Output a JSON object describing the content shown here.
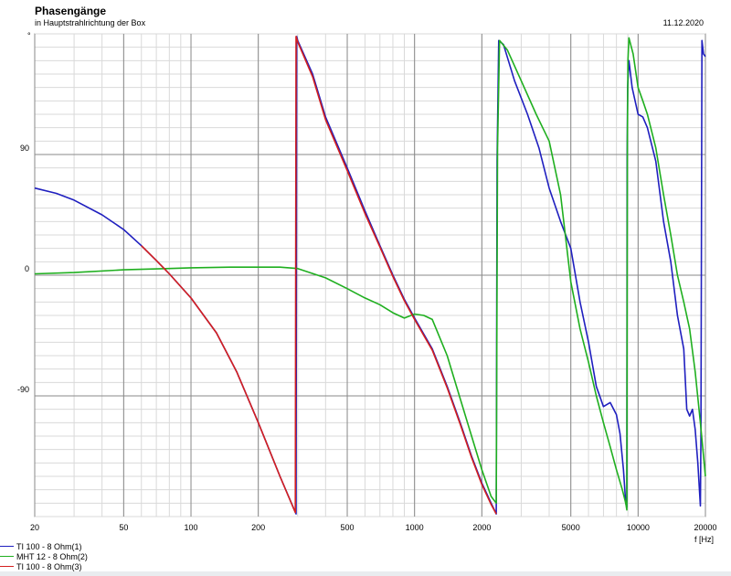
{
  "chart_data": {
    "type": "line",
    "title": "Phasengänge",
    "subtitle": "in Hauptstrahlrichtung der Box",
    "date": "11.12.2020",
    "xlabel": "f [Hz]",
    "ylabel": "°",
    "xscale": "log",
    "xlim": [
      20,
      20000
    ],
    "ylim": [
      -180,
      180
    ],
    "grid": true,
    "legend_position": "bottom-left",
    "x_ticks": [
      {
        "value": 20,
        "label": "20"
      },
      {
        "value": 50,
        "label": "50"
      },
      {
        "value": 100,
        "label": "100"
      },
      {
        "value": 200,
        "label": "200"
      },
      {
        "value": 500,
        "label": "500"
      },
      {
        "value": 1000,
        "label": "1000"
      },
      {
        "value": 2000,
        "label": "2000"
      },
      {
        "value": 5000,
        "label": "5000"
      },
      {
        "value": 10000,
        "label": "10000"
      },
      {
        "value": 20000,
        "label": "20000"
      }
    ],
    "y_ticks": [
      {
        "value": 90,
        "label": "90"
      },
      {
        "value": 0,
        "label": "0"
      },
      {
        "value": -90,
        "label": "-90"
      }
    ],
    "series": [
      {
        "name": "TI 100 - 8 Ohm(1)",
        "color": "#1f1fbf",
        "points": [
          [
            20,
            65
          ],
          [
            25,
            61
          ],
          [
            30,
            56
          ],
          [
            40,
            45
          ],
          [
            50,
            34
          ],
          [
            60,
            22
          ],
          [
            70,
            11
          ],
          [
            80,
            1
          ],
          [
            100,
            -17
          ],
          [
            130,
            -43
          ],
          [
            160,
            -72
          ],
          [
            200,
            -110
          ],
          [
            250,
            -150
          ],
          [
            295,
            -178
          ],
          [
            297,
            178
          ],
          [
            300,
            175
          ],
          [
            350,
            150
          ],
          [
            400,
            118
          ],
          [
            500,
            80
          ],
          [
            600,
            48
          ],
          [
            700,
            22
          ],
          [
            800,
            0
          ],
          [
            900,
            -18
          ],
          [
            1000,
            -32
          ],
          [
            1200,
            -55
          ],
          [
            1400,
            -83
          ],
          [
            1600,
            -110
          ],
          [
            1800,
            -135
          ],
          [
            2000,
            -155
          ],
          [
            2200,
            -170
          ],
          [
            2320,
            -178
          ],
          [
            2340,
            85
          ],
          [
            2380,
            175
          ],
          [
            2500,
            172
          ],
          [
            2800,
            145
          ],
          [
            3200,
            120
          ],
          [
            3600,
            95
          ],
          [
            4000,
            65
          ],
          [
            4500,
            40
          ],
          [
            5000,
            20
          ],
          [
            5500,
            -20
          ],
          [
            6000,
            -50
          ],
          [
            6500,
            -83
          ],
          [
            7000,
            -98
          ],
          [
            7500,
            -95
          ],
          [
            8000,
            -104
          ],
          [
            8300,
            -118
          ],
          [
            8600,
            -145
          ],
          [
            8800,
            -170
          ],
          [
            8900,
            -173
          ],
          [
            8930,
            85
          ],
          [
            8980,
            140
          ],
          [
            9100,
            160
          ],
          [
            9400,
            140
          ],
          [
            10000,
            120
          ],
          [
            10500,
            118
          ],
          [
            11000,
            110
          ],
          [
            12000,
            85
          ],
          [
            13000,
            40
          ],
          [
            14000,
            10
          ],
          [
            15000,
            -30
          ],
          [
            16000,
            -55
          ],
          [
            16500,
            -100
          ],
          [
            17000,
            -105
          ],
          [
            17500,
            -100
          ],
          [
            18000,
            -115
          ],
          [
            18500,
            -140
          ],
          [
            19000,
            -172
          ],
          [
            19100,
            -120
          ],
          [
            19300,
            175
          ],
          [
            19600,
            165
          ],
          [
            20000,
            163
          ]
        ]
      },
      {
        "name": "MHT 12 - 8 Ohm(2)",
        "color": "#1faf1f",
        "points": [
          [
            20,
            1
          ],
          [
            30,
            2
          ],
          [
            50,
            4
          ],
          [
            80,
            5
          ],
          [
            100,
            5.5
          ],
          [
            150,
            6
          ],
          [
            200,
            6
          ],
          [
            250,
            6
          ],
          [
            300,
            5
          ],
          [
            400,
            -2
          ],
          [
            500,
            -10
          ],
          [
            600,
            -17
          ],
          [
            700,
            -22
          ],
          [
            800,
            -28
          ],
          [
            900,
            -32
          ],
          [
            1000,
            -29
          ],
          [
            1100,
            -30
          ],
          [
            1200,
            -33
          ],
          [
            1400,
            -60
          ],
          [
            1600,
            -92
          ],
          [
            1800,
            -120
          ],
          [
            2000,
            -145
          ],
          [
            2200,
            -165
          ],
          [
            2320,
            -170
          ],
          [
            2350,
            95
          ],
          [
            2400,
            175
          ],
          [
            2600,
            168
          ],
          [
            3000,
            145
          ],
          [
            3500,
            120
          ],
          [
            4000,
            100
          ],
          [
            4500,
            60
          ],
          [
            5000,
            -5
          ],
          [
            5500,
            -40
          ],
          [
            6000,
            -65
          ],
          [
            6500,
            -90
          ],
          [
            7000,
            -110
          ],
          [
            7500,
            -128
          ],
          [
            8000,
            -145
          ],
          [
            8500,
            -160
          ],
          [
            8800,
            -170
          ],
          [
            8900,
            -175
          ],
          [
            8950,
            100
          ],
          [
            9000,
            160
          ],
          [
            9100,
            177
          ],
          [
            9500,
            165
          ],
          [
            10000,
            140
          ],
          [
            10500,
            130
          ],
          [
            11000,
            120
          ],
          [
            12000,
            95
          ],
          [
            13000,
            60
          ],
          [
            14000,
            30
          ],
          [
            15000,
            0
          ],
          [
            16000,
            -20
          ],
          [
            17000,
            -40
          ],
          [
            18000,
            -72
          ],
          [
            19000,
            -110
          ],
          [
            20000,
            -150
          ]
        ]
      },
      {
        "name": "TI 100 - 8 Ohm(3)",
        "color": "#d41f1f",
        "points": [
          [
            60,
            22
          ],
          [
            70,
            11
          ],
          [
            80,
            1
          ],
          [
            100,
            -17
          ],
          [
            130,
            -43
          ],
          [
            160,
            -72
          ],
          [
            200,
            -110
          ],
          [
            250,
            -150
          ],
          [
            293,
            -177
          ],
          [
            295,
            178
          ],
          [
            300,
            174
          ],
          [
            350,
            148
          ],
          [
            400,
            116
          ],
          [
            500,
            78
          ],
          [
            600,
            46
          ],
          [
            700,
            21
          ],
          [
            800,
            -1
          ],
          [
            900,
            -19
          ],
          [
            1000,
            -33
          ],
          [
            1200,
            -56
          ],
          [
            1400,
            -84
          ],
          [
            1600,
            -111
          ],
          [
            1800,
            -136
          ],
          [
            2000,
            -156
          ],
          [
            2200,
            -171
          ],
          [
            2320,
            -178
          ]
        ]
      }
    ]
  }
}
